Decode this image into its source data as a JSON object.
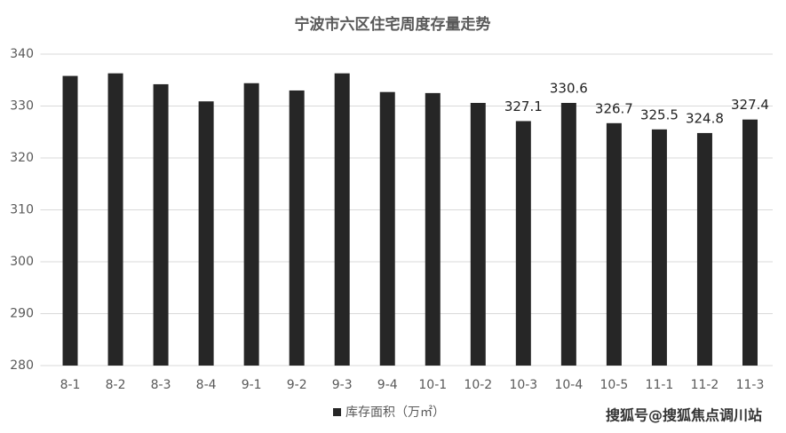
{
  "chart_data": {
    "type": "bar",
    "title": "宁波市六区住宅周度存量走势",
    "categories": [
      "8-1",
      "8-2",
      "8-3",
      "8-4",
      "9-1",
      "9-2",
      "9-3",
      "9-4",
      "10-1",
      "10-2",
      "10-3",
      "10-4",
      "10-5",
      "11-1",
      "11-2",
      "11-3"
    ],
    "series": [
      {
        "name": "库存面积（万㎡）",
        "color": "#262626",
        "values": [
          335.8,
          336.3,
          334.2,
          330.9,
          334.4,
          333.0,
          336.3,
          332.7,
          332.5,
          330.6,
          327.1,
          330.6,
          326.7,
          325.5,
          324.8,
          327.4
        ],
        "value_labels": [
          null,
          null,
          null,
          null,
          null,
          null,
          null,
          null,
          null,
          null,
          "327.1",
          "330.6",
          "326.7",
          "325.5",
          "324.8",
          "327.4"
        ]
      }
    ],
    "ylim": [
      280,
      340
    ],
    "yticks": [
      280,
      290,
      300,
      310,
      320,
      330,
      340
    ],
    "grid": true,
    "legend": "bottom",
    "watermark": "搜狐号@搜狐焦点调川站"
  }
}
